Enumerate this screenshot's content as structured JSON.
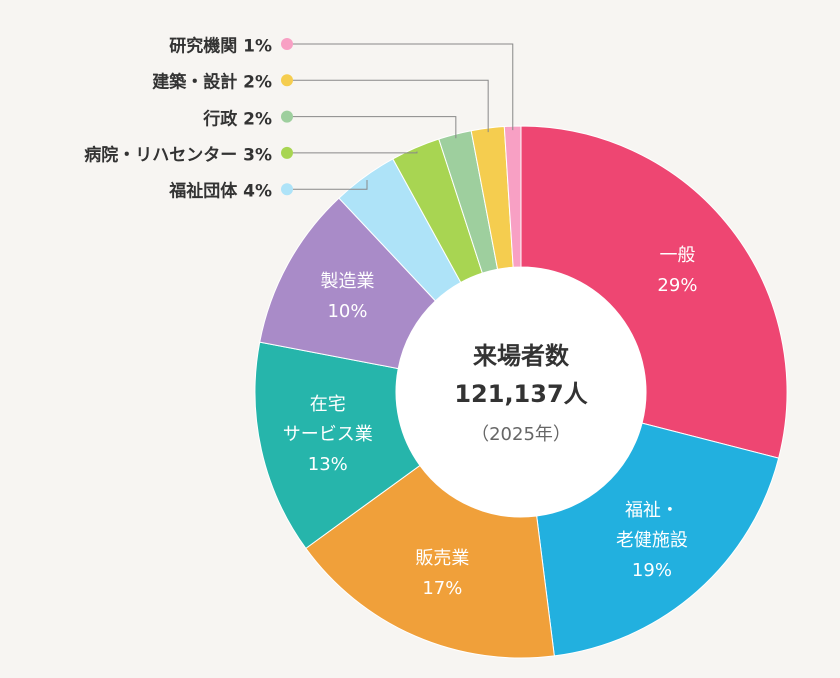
{
  "chart_data": {
    "type": "donut",
    "center_title": "来場者数",
    "center_value": "121,137人",
    "center_subtitle": "（2025年）",
    "categories": [
      "一般",
      "福祉・\n老健施設",
      "販売業",
      "在宅\nサービス業",
      "製造業",
      "福祉団体",
      "病院・リハセンター",
      "行政",
      "建築・設計",
      "研究機関"
    ],
    "values": [
      29,
      19,
      17,
      13,
      10,
      4,
      3,
      2,
      2,
      1
    ],
    "value_labels": [
      "29%",
      "19%",
      "17%",
      "13%",
      "10%",
      "4%",
      "3%",
      "2%",
      "2%",
      "1%"
    ],
    "colors": [
      "#ee4672",
      "#22b0df",
      "#f0a03a",
      "#26b5ab",
      "#a98bc8",
      "#aee3f8",
      "#a8d552",
      "#9ecf9e",
      "#f5cd4f",
      "#f8a0c4"
    ]
  }
}
